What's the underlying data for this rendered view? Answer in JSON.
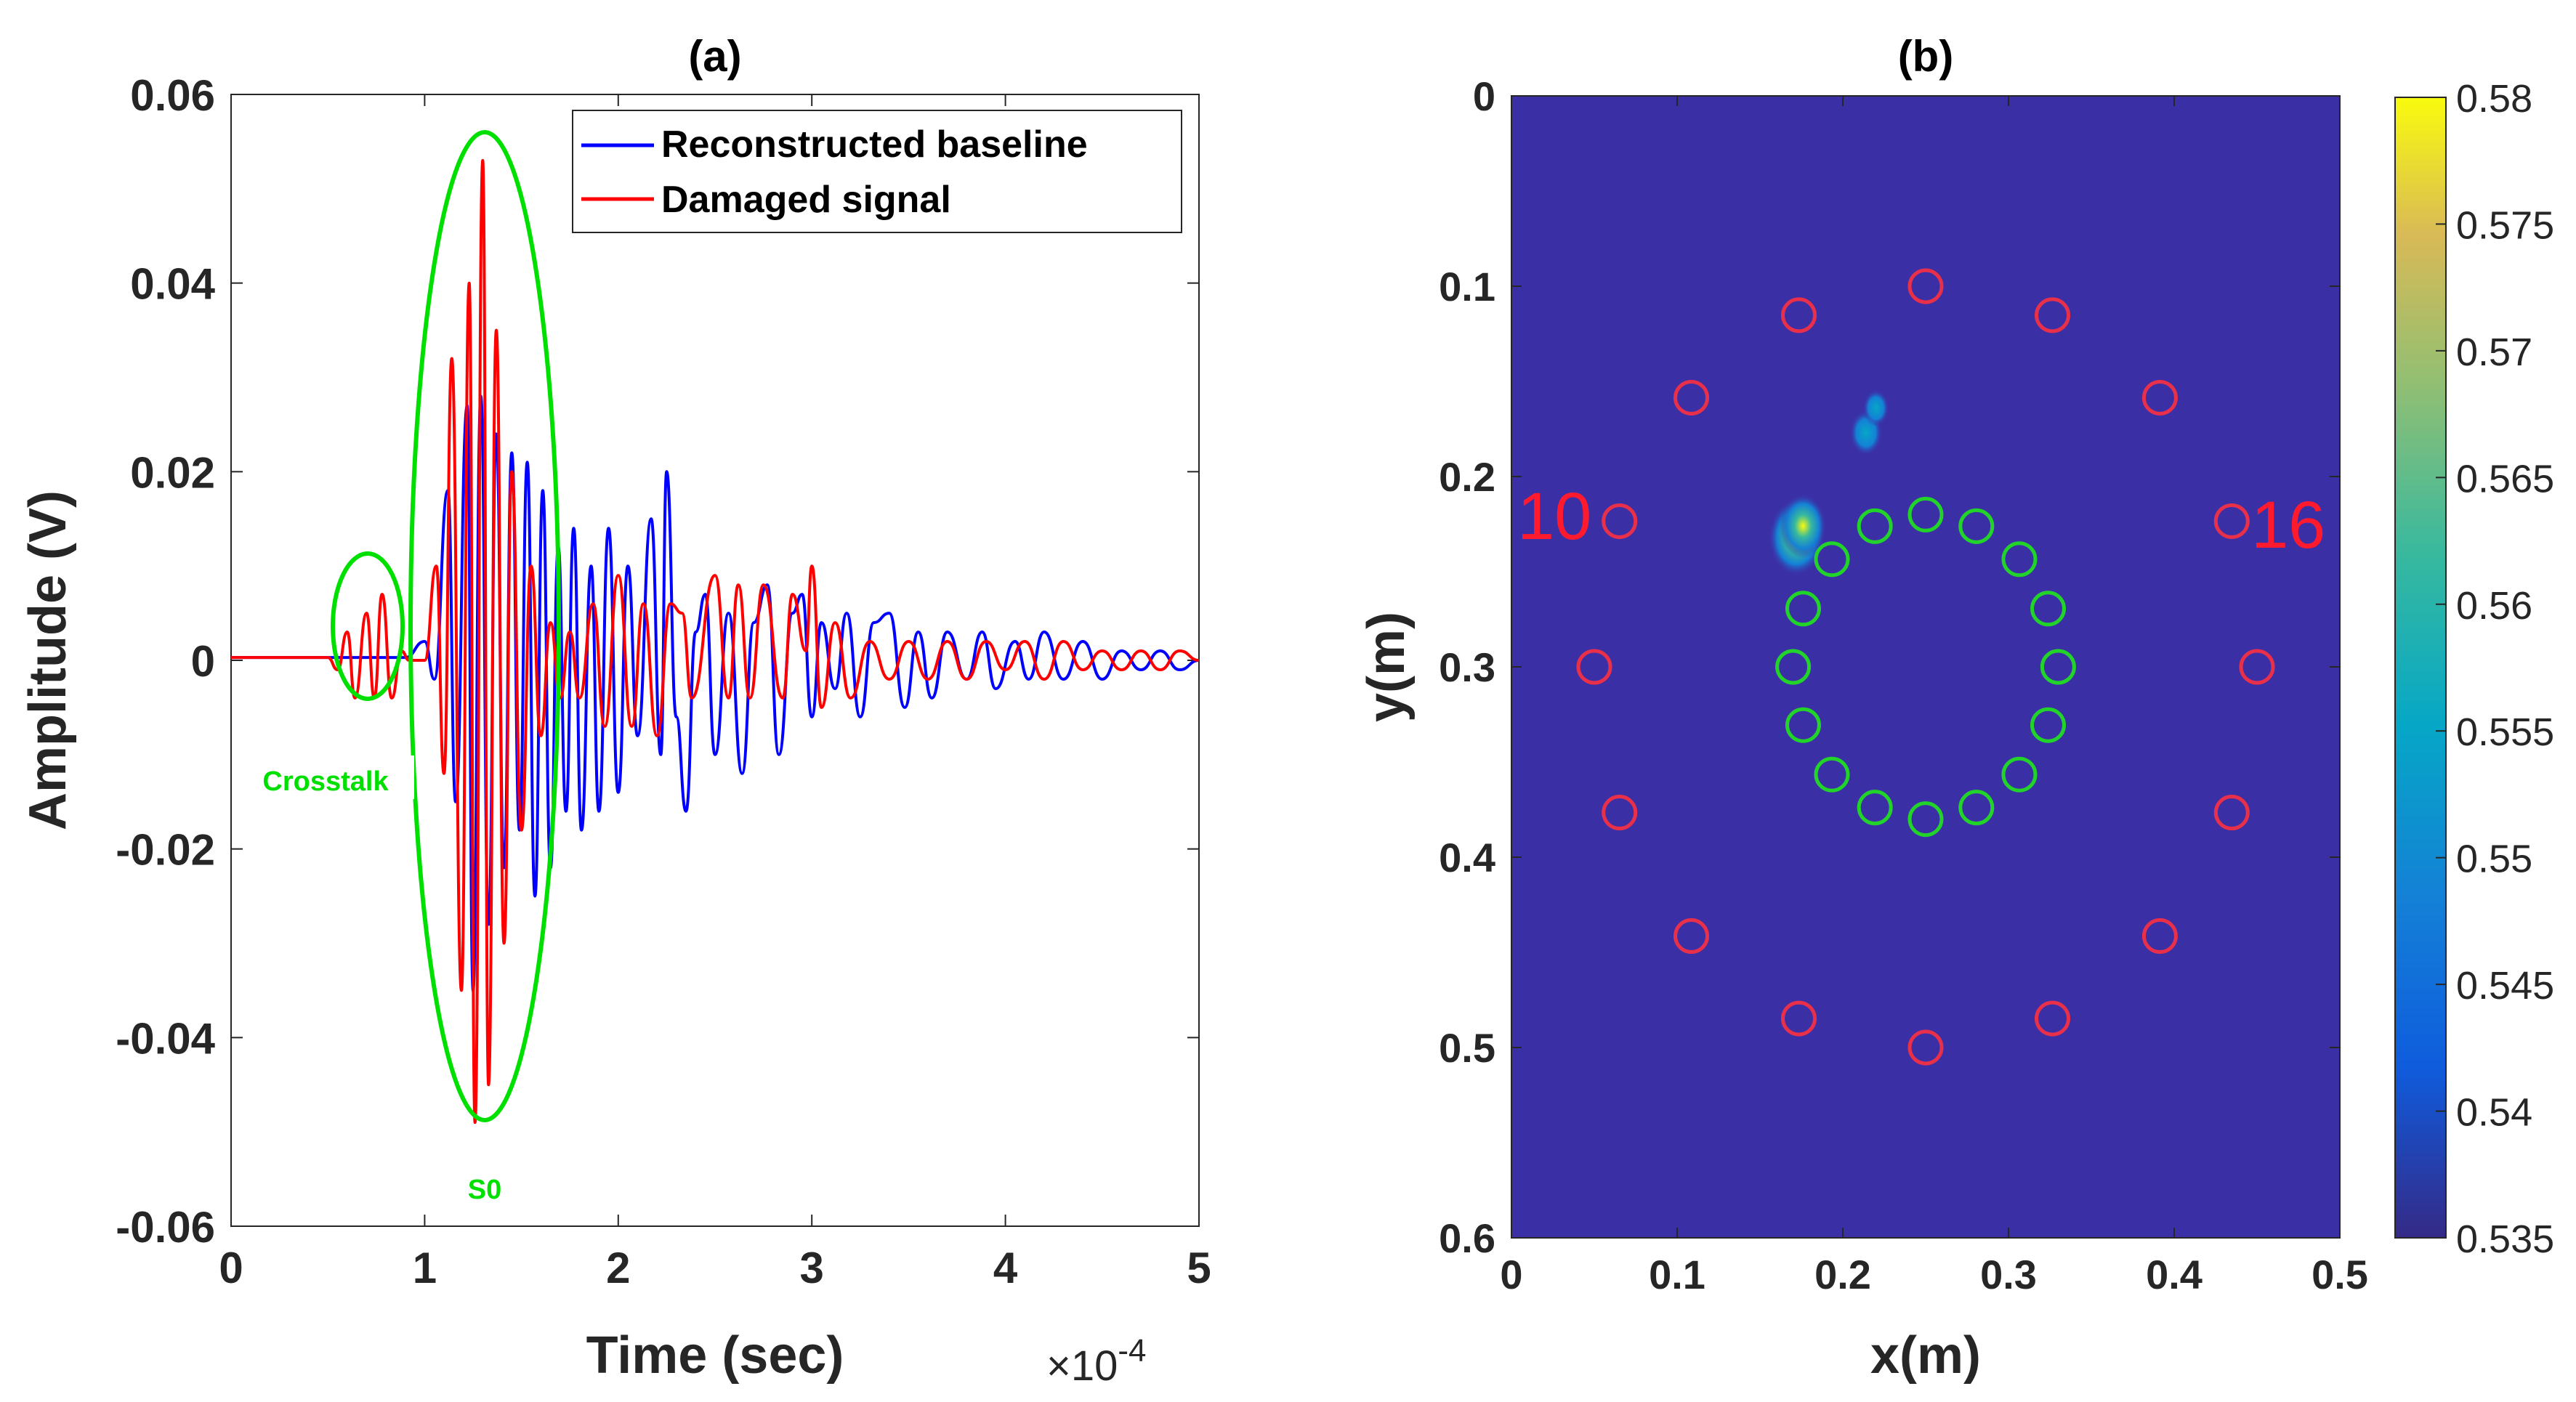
{
  "colors": {
    "baseline": "#0000ff",
    "damaged": "#ff0000",
    "annotation": "#00e000",
    "map_background": "#3b2fa6",
    "outer_sensor": "#e8304a",
    "inner_sensor": "#22d42a"
  },
  "panel_a": {
    "title": "(a)",
    "xlabel": "Time (sec)",
    "ylabel": "Amplitude (V)",
    "exponent_label": "×10",
    "exponent_power": "-4",
    "legend": [
      "Reconstructed baseline",
      "Damaged signal"
    ],
    "annotations": [
      "Crosstalk",
      "S0"
    ]
  },
  "panel_b": {
    "title": "(b)",
    "xlabel": "x(m)",
    "ylabel": "y(m)",
    "sensor_labels": [
      "10",
      "16"
    ],
    "colorbar_ticks": [
      "0.535",
      "0.54",
      "0.545",
      "0.55",
      "0.555",
      "0.56",
      "0.565",
      "0.57",
      "0.575",
      "0.58"
    ]
  },
  "chart_data": [
    {
      "type": "line",
      "title": "(a)",
      "xlabel": "Time (sec)",
      "ylabel": "Amplitude (V)",
      "x_multiplier": "1e-4",
      "xlim": [
        0,
        5
      ],
      "ylim": [
        -0.06,
        0.06
      ],
      "xticks": [
        "0",
        "1",
        "2",
        "3",
        "4",
        "5"
      ],
      "yticks": [
        "0.06",
        "0.04",
        "0.02",
        "0",
        "-0.02",
        "-0.04",
        "-0.06"
      ],
      "legend_position": "top-right",
      "series": [
        {
          "name": "Reconstructed baseline",
          "color": "#0000ff",
          "points": [
            [
              0,
              0.0003
            ],
            [
              0.5,
              0.0003
            ],
            [
              0.9,
              0.0003
            ],
            [
              1.0,
              0.002
            ],
            [
              1.05,
              -0.002
            ],
            [
              1.12,
              0.018
            ],
            [
              1.16,
              -0.015
            ],
            [
              1.22,
              0.027
            ],
            [
              1.25,
              -0.035
            ],
            [
              1.29,
              0.028
            ],
            [
              1.33,
              -0.028
            ],
            [
              1.37,
              0.024
            ],
            [
              1.41,
              -0.022
            ],
            [
              1.45,
              0.022
            ],
            [
              1.49,
              -0.018
            ],
            [
              1.53,
              0.021
            ],
            [
              1.57,
              -0.025
            ],
            [
              1.61,
              0.018
            ],
            [
              1.65,
              -0.022
            ],
            [
              1.69,
              0.012
            ],
            [
              1.73,
              -0.016
            ],
            [
              1.77,
              0.014
            ],
            [
              1.81,
              -0.018
            ],
            [
              1.86,
              0.01
            ],
            [
              1.9,
              -0.016
            ],
            [
              1.95,
              0.014
            ],
            [
              2.0,
              -0.014
            ],
            [
              2.05,
              0.01
            ],
            [
              2.1,
              -0.008
            ],
            [
              2.17,
              0.015
            ],
            [
              2.22,
              -0.01
            ],
            [
              2.25,
              0.02
            ],
            [
              2.3,
              -0.006
            ],
            [
              2.35,
              -0.016
            ],
            [
              2.4,
              0.003
            ],
            [
              2.45,
              0.007
            ],
            [
              2.5,
              -0.01
            ],
            [
              2.57,
              0.005
            ],
            [
              2.64,
              -0.012
            ],
            [
              2.7,
              0.004
            ],
            [
              2.77,
              0.008
            ],
            [
              2.83,
              -0.01
            ],
            [
              2.9,
              0.005
            ],
            [
              2.95,
              0.007
            ],
            [
              3.0,
              -0.006
            ],
            [
              3.05,
              0.004
            ],
            [
              3.12,
              -0.003
            ],
            [
              3.18,
              0.005
            ],
            [
              3.25,
              -0.006
            ],
            [
              3.32,
              0.004
            ],
            [
              3.4,
              0.005
            ],
            [
              3.48,
              -0.005
            ],
            [
              3.55,
              0.003
            ],
            [
              3.62,
              -0.004
            ],
            [
              3.7,
              0.003
            ],
            [
              3.8,
              -0.002
            ],
            [
              3.88,
              0.003
            ],
            [
              3.95,
              -0.003
            ],
            [
              4.05,
              0.002
            ],
            [
              4.12,
              -0.002
            ],
            [
              4.2,
              0.003
            ],
            [
              4.3,
              -0.002
            ],
            [
              4.4,
              0.002
            ],
            [
              4.5,
              -0.002
            ],
            [
              4.6,
              0.001
            ],
            [
              4.7,
              -0.001
            ],
            [
              4.8,
              0.001
            ],
            [
              4.9,
              -0.001
            ],
            [
              5.0,
              0.0
            ]
          ]
        },
        {
          "name": "Damaged signal",
          "color": "#ff0000",
          "points": [
            [
              0,
              0.0003
            ],
            [
              0.5,
              0.0003
            ],
            [
              0.55,
              -0.001
            ],
            [
              0.6,
              0.003
            ],
            [
              0.64,
              -0.004
            ],
            [
              0.7,
              0.005
            ],
            [
              0.74,
              -0.004
            ],
            [
              0.78,
              0.007
            ],
            [
              0.83,
              -0.004
            ],
            [
              0.88,
              0.001
            ],
            [
              0.92,
              0.0
            ],
            [
              1.0,
              0.0
            ],
            [
              1.06,
              0.01
            ],
            [
              1.1,
              -0.012
            ],
            [
              1.14,
              0.032
            ],
            [
              1.19,
              -0.035
            ],
            [
              1.23,
              0.04
            ],
            [
              1.26,
              -0.049
            ],
            [
              1.3,
              0.053
            ],
            [
              1.33,
              -0.045
            ],
            [
              1.37,
              0.035
            ],
            [
              1.41,
              -0.03
            ],
            [
              1.45,
              0.02
            ],
            [
              1.5,
              -0.018
            ],
            [
              1.55,
              0.01
            ],
            [
              1.6,
              -0.008
            ],
            [
              1.65,
              0.004
            ],
            [
              1.7,
              -0.004
            ],
            [
              1.75,
              0.003
            ],
            [
              1.8,
              -0.004
            ],
            [
              1.87,
              0.006
            ],
            [
              1.93,
              -0.007
            ],
            [
              2.0,
              0.009
            ],
            [
              2.07,
              -0.007
            ],
            [
              2.13,
              0.006
            ],
            [
              2.2,
              -0.008
            ],
            [
              2.27,
              0.006
            ],
            [
              2.33,
              0.005
            ],
            [
              2.38,
              -0.004
            ],
            [
              2.5,
              0.009
            ],
            [
              2.57,
              -0.004
            ],
            [
              2.62,
              0.008
            ],
            [
              2.68,
              -0.004
            ],
            [
              2.75,
              0.008
            ],
            [
              2.85,
              -0.004
            ],
            [
              2.9,
              0.007
            ],
            [
              2.97,
              0.001
            ],
            [
              3.0,
              0.01
            ],
            [
              3.05,
              -0.005
            ],
            [
              3.12,
              0.004
            ],
            [
              3.2,
              -0.004
            ],
            [
              3.3,
              0.002
            ],
            [
              3.4,
              -0.002
            ],
            [
              3.5,
              0.002
            ],
            [
              3.6,
              -0.002
            ],
            [
              3.7,
              0.002
            ],
            [
              3.8,
              -0.002
            ],
            [
              3.9,
              0.002
            ],
            [
              4.0,
              -0.001
            ],
            [
              4.1,
              0.002
            ],
            [
              4.2,
              -0.002
            ],
            [
              4.3,
              0.002
            ],
            [
              4.4,
              -0.001
            ],
            [
              4.5,
              0.001
            ],
            [
              4.6,
              -0.001
            ],
            [
              4.7,
              0.001
            ],
            [
              4.8,
              -0.001
            ],
            [
              4.9,
              0.001
            ],
            [
              5.0,
              0.0
            ]
          ]
        }
      ]
    },
    {
      "type": "heatmap",
      "title": "(b)",
      "xlabel": "x(m)",
      "ylabel": "y(m)",
      "xlim": [
        0,
        0.5
      ],
      "ylim": [
        0,
        0.6
      ],
      "y_reversed": true,
      "xticks": [
        "0",
        "0.1",
        "0.2",
        "0.3",
        "0.4",
        "0.5"
      ],
      "yticks": [
        "0",
        "0.1",
        "0.2",
        "0.3",
        "0.4",
        "0.5",
        "0.6"
      ],
      "colormap": "parula",
      "colorbar_range": [
        0.535,
        0.58
      ],
      "hotspots": [
        {
          "x": 0.172,
          "y": 0.232,
          "value": 0.572
        },
        {
          "x": 0.176,
          "y": 0.226,
          "value": 0.562
        },
        {
          "x": 0.214,
          "y": 0.177,
          "value": 0.548
        },
        {
          "x": 0.22,
          "y": 0.164,
          "value": 0.541
        }
      ],
      "outer_sensors": {
        "center": [
          0.25,
          0.3
        ],
        "radius": 0.2,
        "count": 16,
        "color": "#e8304a"
      },
      "inner_sensors": {
        "center": [
          0.25,
          0.3
        ],
        "radius": 0.08,
        "count": 16,
        "color": "#22d42a"
      }
    }
  ]
}
